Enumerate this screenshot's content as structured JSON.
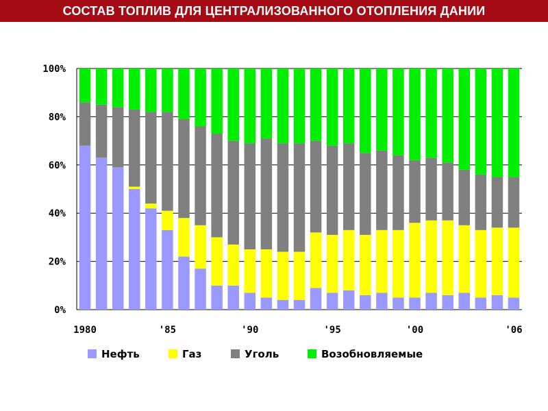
{
  "title": "СОСТАВ ТОПЛИВ ДЛЯ ЦЕНТРАЛИЗОВАННОГО ОТОПЛЕНИЯ ДАНИИ",
  "colors": {
    "title_bar": "#a50b14",
    "oil": "#9999ff",
    "gas": "#ffff00",
    "coal": "#808080",
    "renewables": "#00ee00"
  },
  "chart_data": {
    "type": "bar",
    "stacked": true,
    "categories": [
      "1980",
      "1981",
      "1982",
      "1983",
      "1984",
      "1985",
      "1986",
      "1987",
      "1988",
      "1989",
      "1990",
      "1991",
      "1992",
      "1993",
      "1994",
      "1995",
      "1996",
      "1997",
      "1998",
      "1999",
      "2000",
      "2001",
      "2002",
      "2003",
      "2004",
      "2005",
      "2006"
    ],
    "x_tick_labels": [
      "1980",
      "'85",
      "'90",
      "'95",
      "'00",
      "'06"
    ],
    "y_tick_labels": [
      "0%",
      "20%",
      "40%",
      "60%",
      "80%",
      "100%"
    ],
    "ylim": [
      0,
      100
    ],
    "grid": true,
    "legend_position": "bottom",
    "series": [
      {
        "name": "Нефть",
        "color_key": "oil",
        "values": [
          68,
          63,
          59,
          50,
          42,
          33,
          22,
          17,
          10,
          10,
          7,
          5,
          4,
          4,
          9,
          7,
          8,
          6,
          7,
          5,
          5,
          7,
          6,
          7,
          5,
          6,
          5
        ]
      },
      {
        "name": "Газ",
        "color_key": "gas",
        "values": [
          0,
          0,
          0,
          1,
          2,
          8,
          16,
          18,
          20,
          17,
          18,
          20,
          20,
          20,
          23,
          24,
          25,
          25,
          26,
          28,
          31,
          30,
          31,
          28,
          28,
          28,
          29
        ]
      },
      {
        "name": "Уголь",
        "color_key": "coal",
        "values": [
          18,
          22,
          25,
          32,
          38,
          41,
          41,
          41,
          43,
          43,
          44,
          46,
          45,
          45,
          38,
          37,
          36,
          34,
          33,
          31,
          26,
          26,
          24,
          23,
          23,
          21,
          21
        ]
      },
      {
        "name": "Возобновляемые",
        "color_key": "renewables",
        "values": [
          14,
          15,
          16,
          17,
          18,
          18,
          21,
          24,
          27,
          30,
          31,
          29,
          31,
          31,
          30,
          32,
          31,
          35,
          34,
          36,
          38,
          37,
          39,
          42,
          44,
          45,
          45
        ]
      }
    ]
  }
}
